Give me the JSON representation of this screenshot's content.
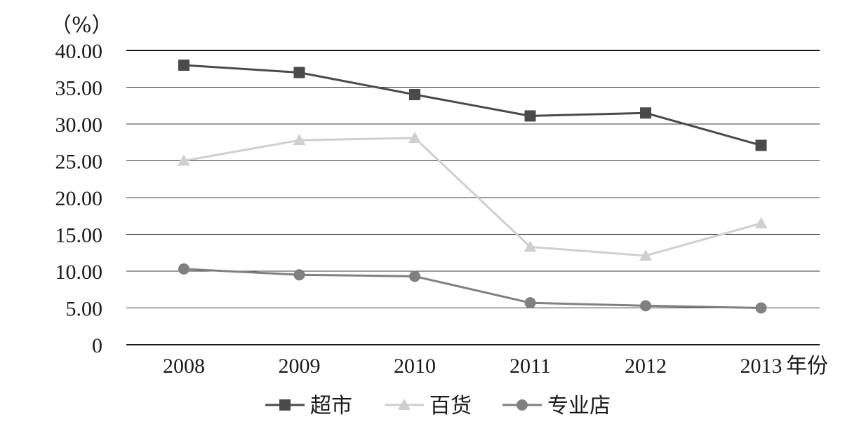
{
  "chart_data": {
    "type": "line",
    "title": "",
    "ylabel": "（%）",
    "xlabel": "年份",
    "x": [
      "2008",
      "2009",
      "2010",
      "2011",
      "2012",
      "2013"
    ],
    "y_ticks": [
      "0",
      "5.00",
      "10.00",
      "15.00",
      "20.00",
      "25.00",
      "30.00",
      "35.00",
      "40.00"
    ],
    "ylim": [
      0,
      40
    ],
    "grid": true,
    "legend_position": "bottom",
    "series": [
      {
        "name": "超市",
        "marker": "square",
        "color": "#4a4a4a",
        "values": [
          38.0,
          37.0,
          34.0,
          31.1,
          31.5,
          27.1
        ]
      },
      {
        "name": "百货",
        "marker": "triangle",
        "color": "#cfcfcf",
        "values": [
          25.0,
          27.8,
          28.1,
          13.3,
          12.1,
          16.5
        ]
      },
      {
        "name": "专业店",
        "marker": "circle",
        "color": "#808080",
        "values": [
          10.3,
          9.5,
          9.3,
          5.7,
          5.3,
          5.0
        ]
      }
    ]
  }
}
